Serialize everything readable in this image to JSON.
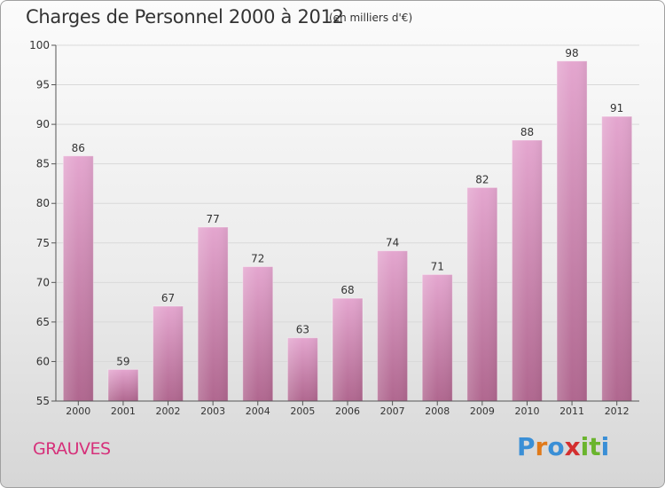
{
  "header": {
    "title": "Charges de Personnel 2000 à 2012",
    "subtitle": "(en milliers d'€)"
  },
  "footer": {
    "commune": "GRAUVES",
    "logo_text": "Proxiti"
  },
  "colors": {
    "bar_top": "#e4a6cf",
    "bar_bottom": "#b0678f",
    "footer_label": "#d6307a",
    "logo": [
      "#3a8fd6",
      "#e07a1a",
      "#3a8fd6",
      "#d32f2f",
      "#6ab42d",
      "#6ab42d",
      "#3a8fd6"
    ]
  },
  "chart_data": {
    "type": "bar",
    "title": "Charges de Personnel 2000 à 2012",
    "subtitle": "(en milliers d'€)",
    "categories": [
      "2000",
      "2001",
      "2002",
      "2003",
      "2004",
      "2005",
      "2006",
      "2007",
      "2008",
      "2009",
      "2010",
      "2011",
      "2012"
    ],
    "values": [
      86,
      59,
      67,
      77,
      72,
      63,
      68,
      74,
      71,
      82,
      88,
      98,
      91
    ],
    "ylim": [
      55,
      100
    ],
    "yticks": [
      55,
      60,
      65,
      70,
      75,
      80,
      85,
      90,
      95,
      100
    ],
    "grid": true,
    "legend": "none"
  }
}
